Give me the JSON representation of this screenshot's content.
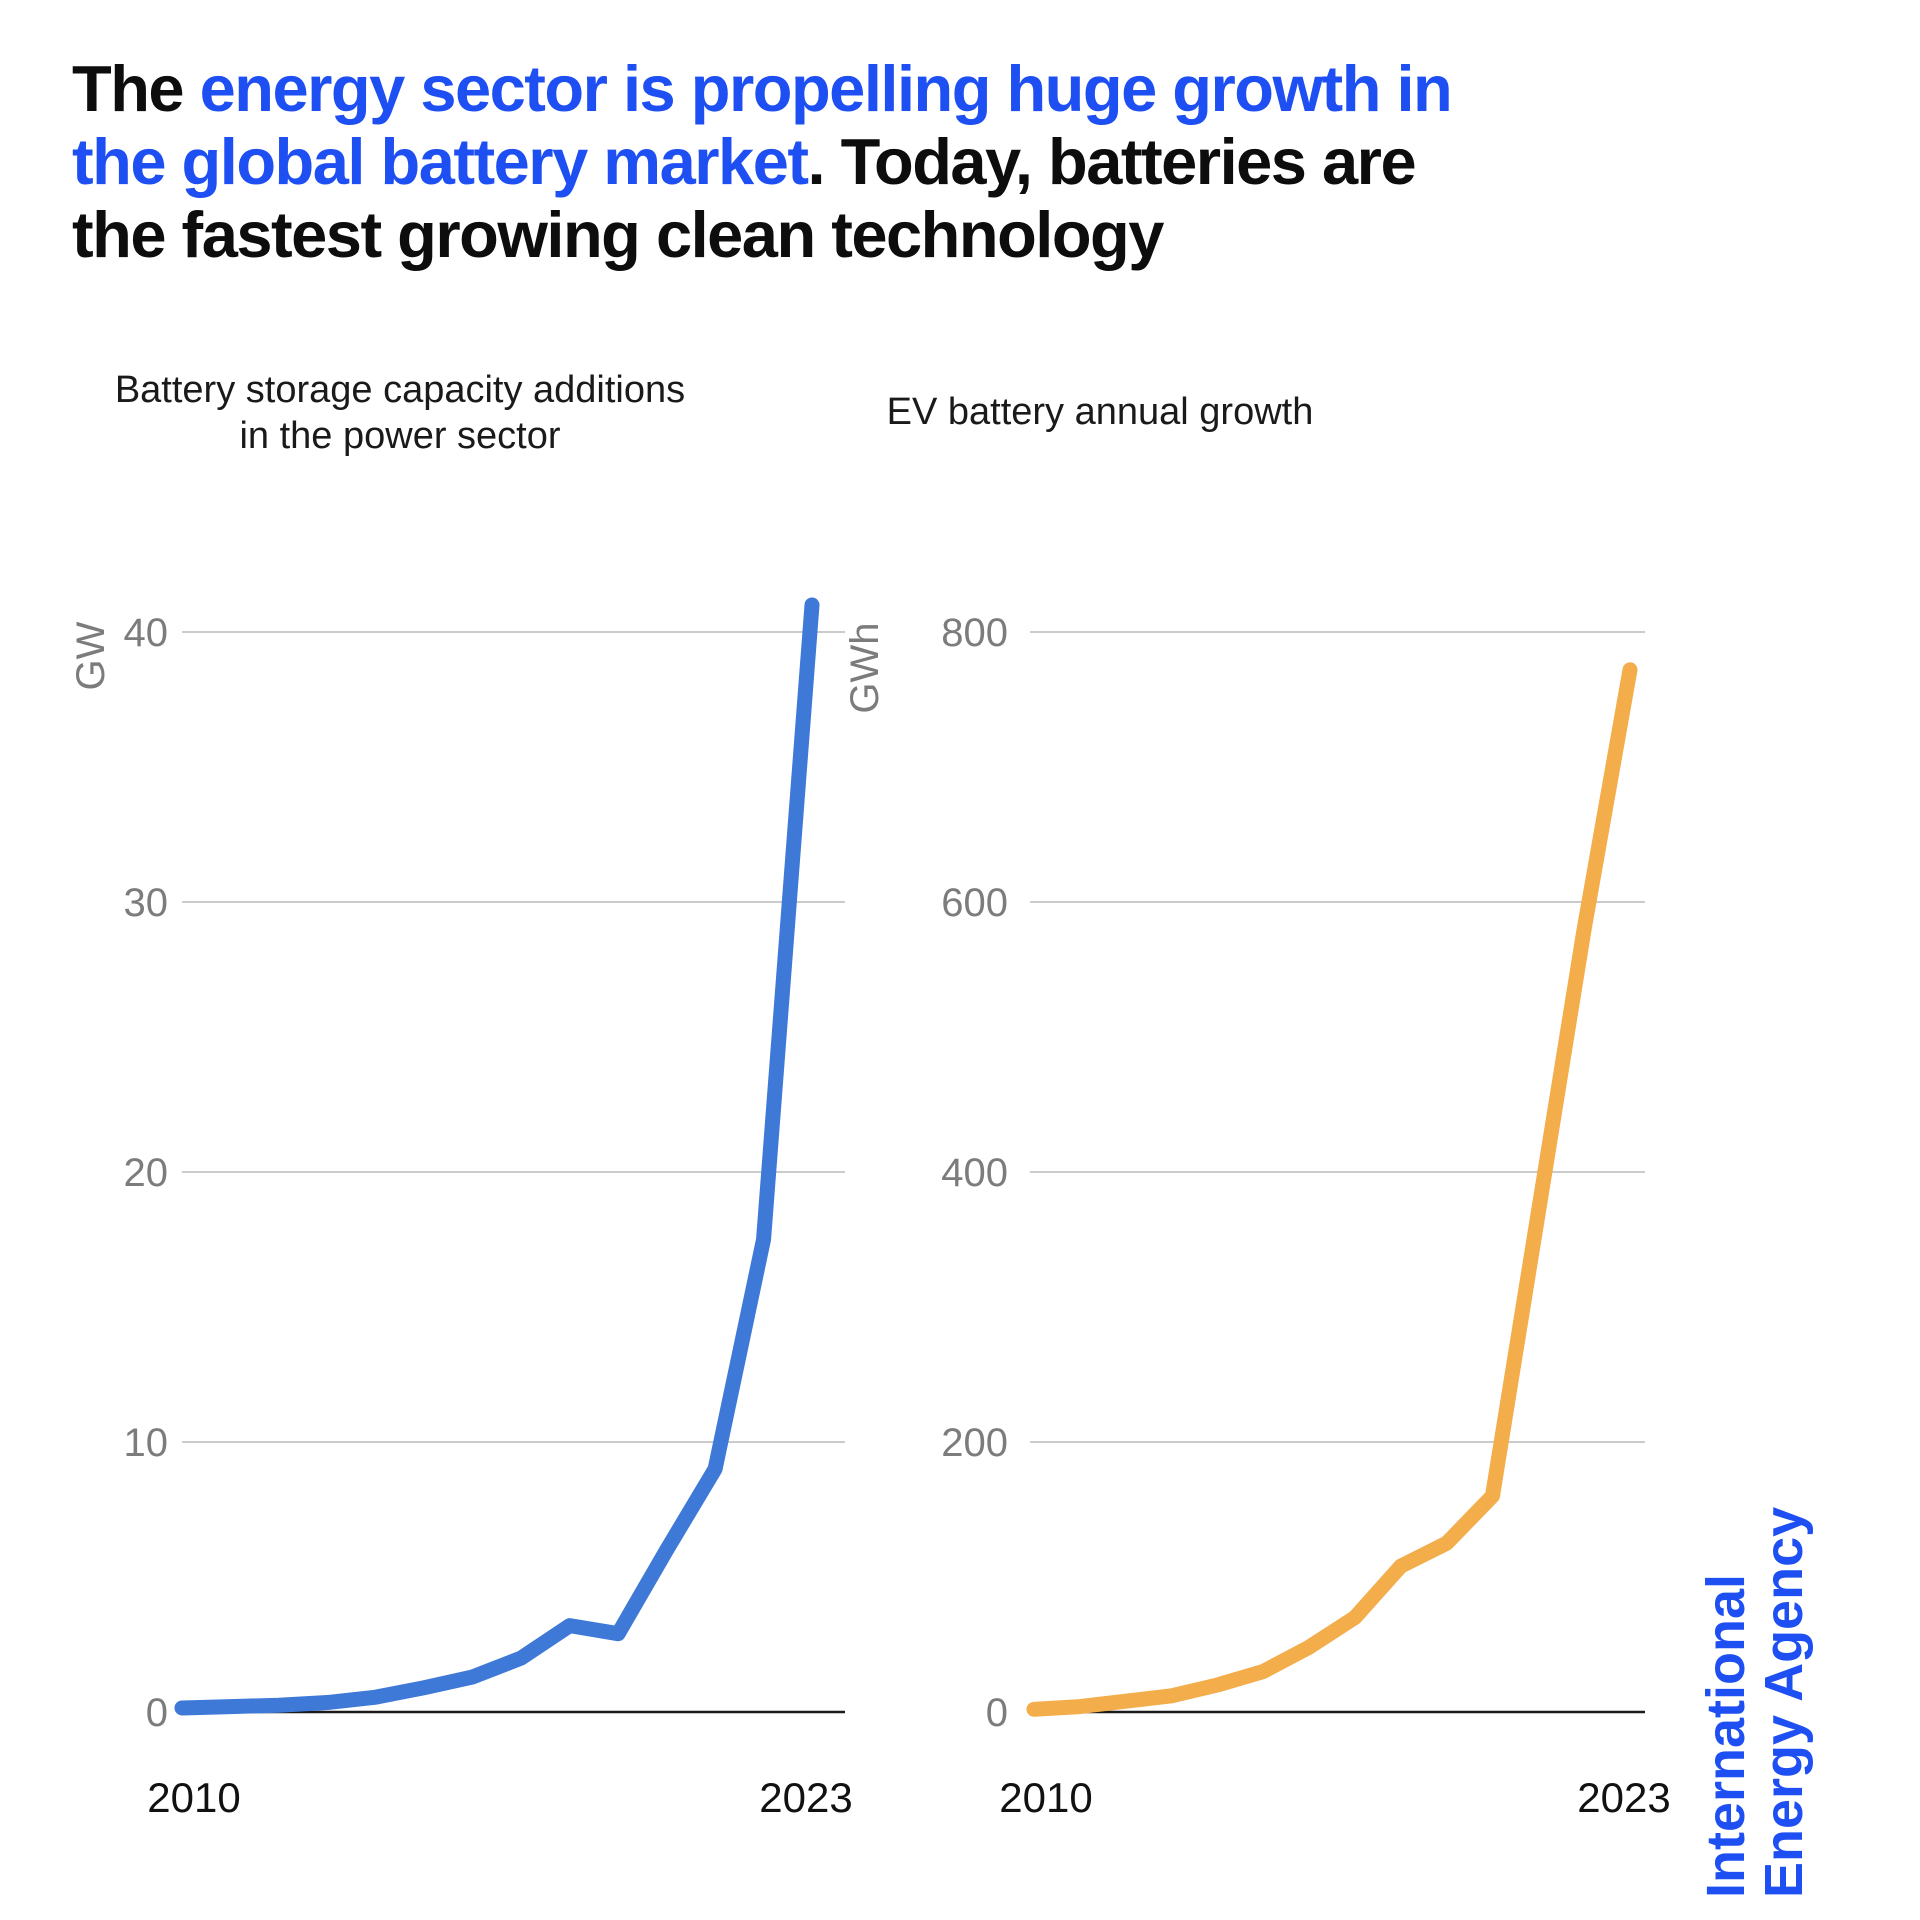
{
  "title": {
    "line1_black": "The ",
    "line1_blue": "energy sector is propelling huge growth in",
    "line2_blue": "the global battery market",
    "line2_black": ". Today, batteries are",
    "line3_black": "the fastest growing clean technology"
  },
  "source": {
    "name": "International Energy Agency",
    "line1": "International",
    "line2": "Energy Agency"
  },
  "colors": {
    "accent_blue": "#1e4ff2",
    "line_blue": "#3e79d8",
    "line_orange": "#f3ad4a",
    "grid_gray": "#cbcbcb",
    "tick_gray": "#7c7c7c",
    "axis_black": "#1a1a1a"
  },
  "chart_data": [
    {
      "type": "line",
      "title_line1": "Battery storage capacity additions",
      "title_line2": "in the power sector",
      "ylabel": "GW",
      "x": [
        2010,
        2011,
        2012,
        2013,
        2014,
        2015,
        2016,
        2017,
        2018,
        2019,
        2020,
        2021,
        2022,
        2023
      ],
      "values": [
        0.15,
        0.2,
        0.25,
        0.35,
        0.55,
        0.9,
        1.3,
        2.0,
        3.2,
        2.9,
        6.0,
        9.0,
        17.5,
        41
      ],
      "ylim": [
        0,
        40
      ],
      "yticks": [
        0,
        10,
        20,
        30,
        40
      ],
      "xtick_labels": [
        "2010",
        "2023"
      ],
      "grid": true,
      "legend": "none",
      "line_color": "#3e79d8"
    },
    {
      "type": "line",
      "title_line1": "EV battery annual growth",
      "title_line2": "",
      "ylabel": "GWh",
      "x": [
        2010,
        2011,
        2012,
        2013,
        2014,
        2015,
        2016,
        2017,
        2018,
        2019,
        2020,
        2021,
        2022,
        2023
      ],
      "values": [
        2,
        4,
        8,
        12,
        20,
        30,
        48,
        70,
        108,
        125,
        160,
        370,
        580,
        772
      ],
      "ylim": [
        0,
        800
      ],
      "yticks": [
        0,
        200,
        400,
        600,
        800
      ],
      "xtick_labels": [
        "2010",
        "2023"
      ],
      "grid": true,
      "legend": "none",
      "line_color": "#f3ad4a"
    }
  ]
}
